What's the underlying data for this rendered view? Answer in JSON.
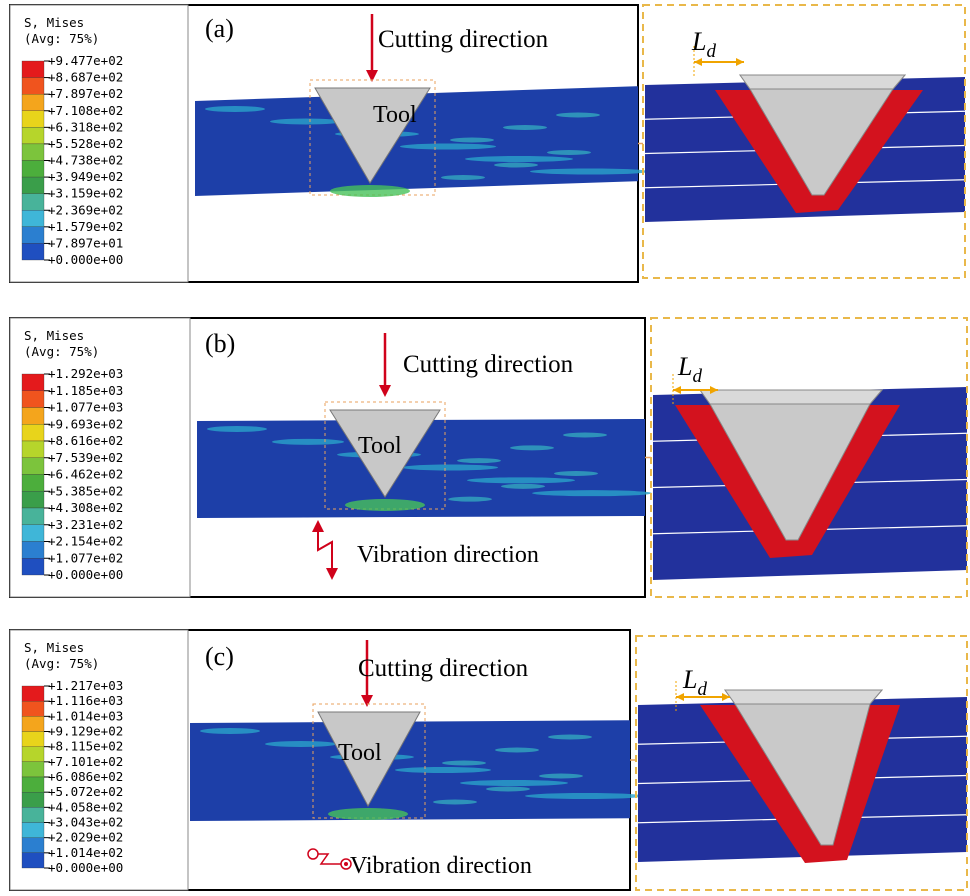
{
  "panels": [
    {
      "label": "(a)",
      "legend": {
        "title": "S, Mises",
        "subtitle": "(Avg: 75%)",
        "values": [
          "+9.477e+02",
          "+8.687e+02",
          "+7.897e+02",
          "+7.108e+02",
          "+6.318e+02",
          "+5.528e+02",
          "+4.738e+02",
          "+3.949e+02",
          "+3.159e+02",
          "+2.369e+02",
          "+1.579e+02",
          "+7.897e+01",
          "+0.000e+00"
        ]
      },
      "cutting_direction": "Cutting direction",
      "tool": "Tool",
      "ld": {
        "main": "L",
        "sub": "d"
      }
    },
    {
      "label": "(b)",
      "legend": {
        "title": "S, Mises",
        "subtitle": "(Avg: 75%)",
        "values": [
          "+1.292e+03",
          "+1.185e+03",
          "+1.077e+03",
          "+9.693e+02",
          "+8.616e+02",
          "+7.539e+02",
          "+6.462e+02",
          "+5.385e+02",
          "+4.308e+02",
          "+3.231e+02",
          "+2.154e+02",
          "+1.077e+02",
          "+0.000e+00"
        ]
      },
      "cutting_direction": "Cutting direction",
      "tool": "Tool",
      "vibration_direction": "Vibration direction",
      "ld": {
        "main": "L",
        "sub": "d"
      }
    },
    {
      "label": "(c)",
      "legend": {
        "title": "S, Mises",
        "subtitle": "(Avg: 75%)",
        "values": [
          "+1.217e+03",
          "+1.116e+03",
          "+1.014e+03",
          "+9.129e+02",
          "+8.115e+02",
          "+7.101e+02",
          "+6.086e+02",
          "+5.072e+02",
          "+4.058e+02",
          "+3.043e+02",
          "+2.029e+02",
          "+1.014e+02",
          "+0.000e+00"
        ]
      },
      "cutting_direction": "Cutting direction",
      "tool": "Tool",
      "vibration_direction": "Vibration direction",
      "ld": {
        "main": "L",
        "sub": "d"
      }
    }
  ]
}
